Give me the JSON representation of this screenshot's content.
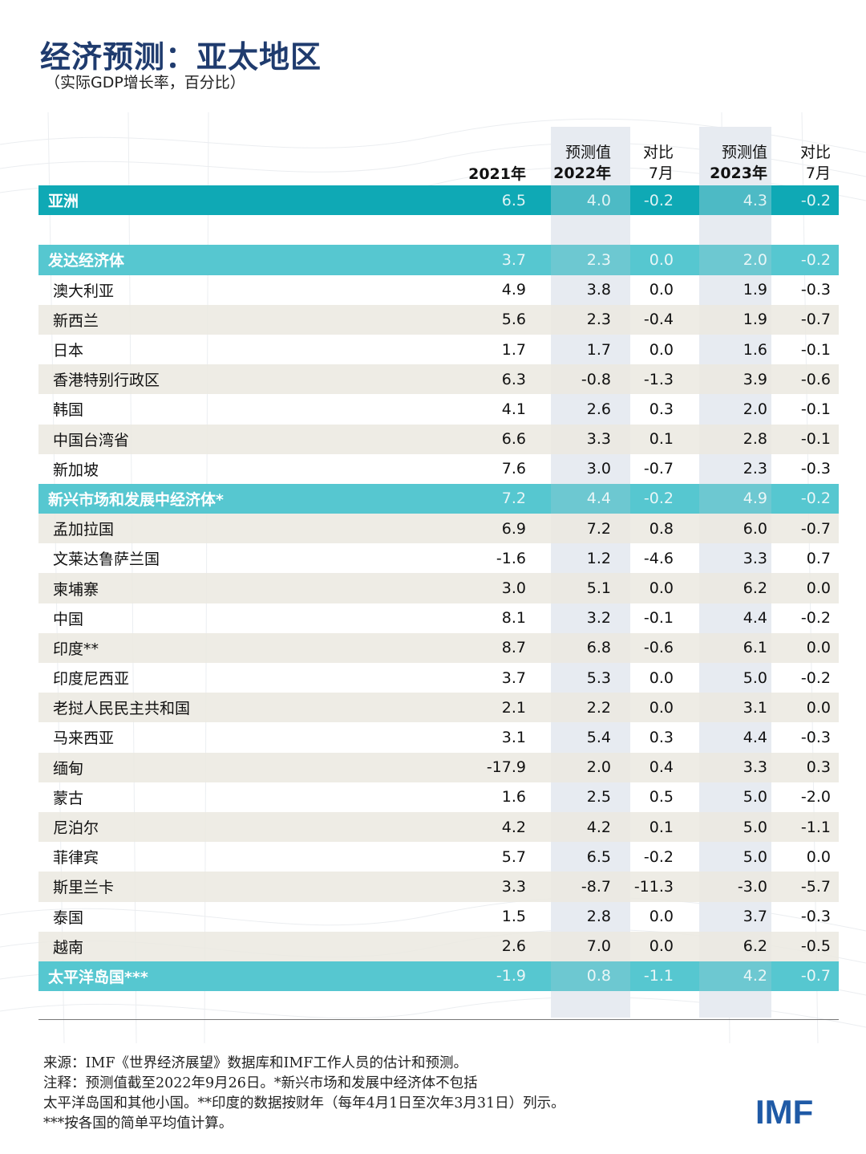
{
  "title": "经济预测：亚太地区",
  "subtitle": "（实际GDP增长率，百分比）",
  "headers": {
    "col1": "2021年",
    "col2_top": "预测值",
    "col2": "2022年",
    "col3_top": "对比",
    "col3": "7月",
    "col4_top": "预测值",
    "col4": "2023年",
    "col5_top": "对比",
    "col5": "7月"
  },
  "rows": [
    {
      "type": "group",
      "asia": true,
      "name": "亚洲",
      "v": [
        "6.5",
        "4.0",
        "-0.2",
        "4.3",
        "-0.2"
      ]
    },
    {
      "type": "spacer"
    },
    {
      "type": "group",
      "name": "发达经济体",
      "v": [
        "3.7",
        "2.3",
        "0.0",
        "2.0",
        "-0.2"
      ]
    },
    {
      "type": "row",
      "name": "澳大利亚",
      "v": [
        "4.9",
        "3.8",
        "0.0",
        "1.9",
        "-0.3"
      ]
    },
    {
      "type": "row",
      "name": "新西兰",
      "v": [
        "5.6",
        "2.3",
        "-0.4",
        "1.9",
        "-0.7"
      ]
    },
    {
      "type": "row",
      "name": "日本",
      "v": [
        "1.7",
        "1.7",
        "0.0",
        "1.6",
        "-0.1"
      ]
    },
    {
      "type": "row",
      "name": "香港特别行政区",
      "v": [
        "6.3",
        "-0.8",
        "-1.3",
        "3.9",
        "-0.6"
      ]
    },
    {
      "type": "row",
      "name": "韩国",
      "v": [
        "4.1",
        "2.6",
        "0.3",
        "2.0",
        "-0.1"
      ]
    },
    {
      "type": "row",
      "name": "中国台湾省",
      "v": [
        "6.6",
        "3.3",
        "0.1",
        "2.8",
        "-0.1"
      ]
    },
    {
      "type": "row",
      "name": "新加坡",
      "v": [
        "7.6",
        "3.0",
        "-0.7",
        "2.3",
        "-0.3"
      ]
    },
    {
      "type": "group",
      "name": "新兴市场和发展中经济体*",
      "v": [
        "7.2",
        "4.4",
        "-0.2",
        "4.9",
        "-0.2"
      ]
    },
    {
      "type": "row",
      "name": "孟加拉国",
      "v": [
        "6.9",
        "7.2",
        "0.8",
        "6.0",
        "-0.7"
      ]
    },
    {
      "type": "row",
      "name": "文莱达鲁萨兰国",
      "v": [
        "-1.6",
        "1.2",
        "-4.6",
        "3.3",
        "0.7"
      ]
    },
    {
      "type": "row",
      "name": "柬埔寨",
      "v": [
        "3.0",
        "5.1",
        "0.0",
        "6.2",
        "0.0"
      ]
    },
    {
      "type": "row",
      "name": "中国",
      "v": [
        "8.1",
        "3.2",
        "-0.1",
        "4.4",
        "-0.2"
      ]
    },
    {
      "type": "row",
      "name": "印度**",
      "v": [
        "8.7",
        "6.8",
        "-0.6",
        "6.1",
        "0.0"
      ]
    },
    {
      "type": "row",
      "name": "印度尼西亚",
      "v": [
        "3.7",
        "5.3",
        "0.0",
        "5.0",
        "-0.2"
      ]
    },
    {
      "type": "row",
      "name": "老挝人民民主共和国",
      "v": [
        "2.1",
        "2.2",
        "0.0",
        "3.1",
        "0.0"
      ]
    },
    {
      "type": "row",
      "name": "马来西亚",
      "v": [
        "3.1",
        "5.4",
        "0.3",
        "4.4",
        "-0.3"
      ]
    },
    {
      "type": "row",
      "name": "缅甸",
      "v": [
        "-17.9",
        "2.0",
        "0.4",
        "3.3",
        "0.3"
      ]
    },
    {
      "type": "row",
      "name": "蒙古",
      "v": [
        "1.6",
        "2.5",
        "0.5",
        "5.0",
        "-2.0"
      ]
    },
    {
      "type": "row",
      "name": "尼泊尔",
      "v": [
        "4.2",
        "4.2",
        "0.1",
        "5.0",
        "-1.1"
      ]
    },
    {
      "type": "row",
      "name": "菲律宾",
      "v": [
        "5.7",
        "6.5",
        "-0.2",
        "5.0",
        "0.0"
      ]
    },
    {
      "type": "row",
      "name": "斯里兰卡",
      "v": [
        "3.3",
        "-8.7",
        "-11.3",
        "-3.0",
        "-5.7"
      ]
    },
    {
      "type": "row",
      "name": "泰国",
      "v": [
        "1.5",
        "2.8",
        "0.0",
        "3.7",
        "-0.3"
      ]
    },
    {
      "type": "row",
      "name": "越南",
      "v": [
        "2.6",
        "7.0",
        "0.0",
        "6.2",
        "-0.5"
      ]
    },
    {
      "type": "group",
      "name": "太平洋岛国***",
      "v": [
        "-1.9",
        "0.8",
        "-1.1",
        "4.2",
        "-0.7"
      ]
    }
  ],
  "notes": [
    "来源：IMF《世界经济展望》数据库和IMF工作人员的估计和预测。",
    "注释：预测值截至2022年9月26日。*新兴市场和发展中经济体不包括",
    "太平洋岛国和其他小国。**印度的数据按财年（每年4月1日至次年3月31日）列示。",
    "***按各国的简单平均值计算。"
  ],
  "logo": "IMF",
  "colors": {
    "title": "#1f3b6e",
    "asia_row": "#0fa9b5",
    "group_row": "#56c7d0",
    "alt_row": "#ebe9e0",
    "forecast_band": "#e7ebf1",
    "logo": "#1f5aa6"
  }
}
